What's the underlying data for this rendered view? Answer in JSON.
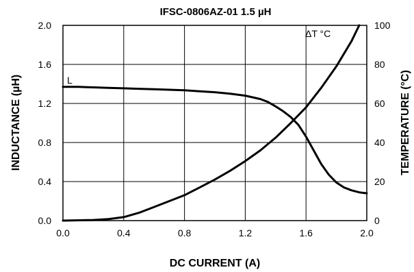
{
  "chart_data": {
    "type": "line",
    "title": "IFSC-0806AZ-01 1.5 µH",
    "xlabel": "DC CURRENT (A)",
    "ylabel_left": "INDUCTANCE (µH)",
    "ylabel_right": "TEMPERATURE (°C)",
    "xlim": [
      0.0,
      2.0
    ],
    "ylim_left": [
      0.0,
      2.0
    ],
    "ylim_right": [
      0,
      100
    ],
    "x_ticks": [
      "0.0",
      "0.4",
      "0.8",
      "1.2",
      "1.6",
      "2.0"
    ],
    "y_left_ticks": [
      "0.0",
      "0.4",
      "0.8",
      "1.2",
      "1.6",
      "2.0"
    ],
    "y_right_ticks": [
      "0",
      "20",
      "40",
      "60",
      "80",
      "100"
    ],
    "grid": true,
    "series": [
      {
        "name": "L",
        "axis": "left",
        "x": [
          0.0,
          0.1,
          0.2,
          0.3,
          0.4,
          0.5,
          0.6,
          0.7,
          0.8,
          0.9,
          1.0,
          1.1,
          1.2,
          1.3,
          1.35,
          1.4,
          1.45,
          1.5,
          1.55,
          1.6,
          1.65,
          1.7,
          1.75,
          1.8,
          1.85,
          1.9,
          1.95,
          2.0
        ],
        "values": [
          1.37,
          1.37,
          1.365,
          1.36,
          1.355,
          1.35,
          1.345,
          1.34,
          1.335,
          1.325,
          1.315,
          1.3,
          1.28,
          1.245,
          1.215,
          1.17,
          1.12,
          1.06,
          0.98,
          0.86,
          0.72,
          0.58,
          0.47,
          0.39,
          0.34,
          0.31,
          0.29,
          0.28
        ]
      },
      {
        "name": "ΔT °C",
        "axis": "right",
        "x": [
          0.0,
          0.2,
          0.3,
          0.4,
          0.5,
          0.6,
          0.7,
          0.8,
          0.9,
          1.0,
          1.1,
          1.2,
          1.3,
          1.4,
          1.5,
          1.6,
          1.7,
          1.8,
          1.9,
          1.95
        ],
        "values": [
          0,
          0.3,
          0.8,
          1.8,
          4,
          7,
          10,
          13,
          17,
          21,
          25.5,
          30.5,
          36,
          42.5,
          50,
          58,
          68,
          79,
          92,
          100
        ]
      }
    ]
  }
}
